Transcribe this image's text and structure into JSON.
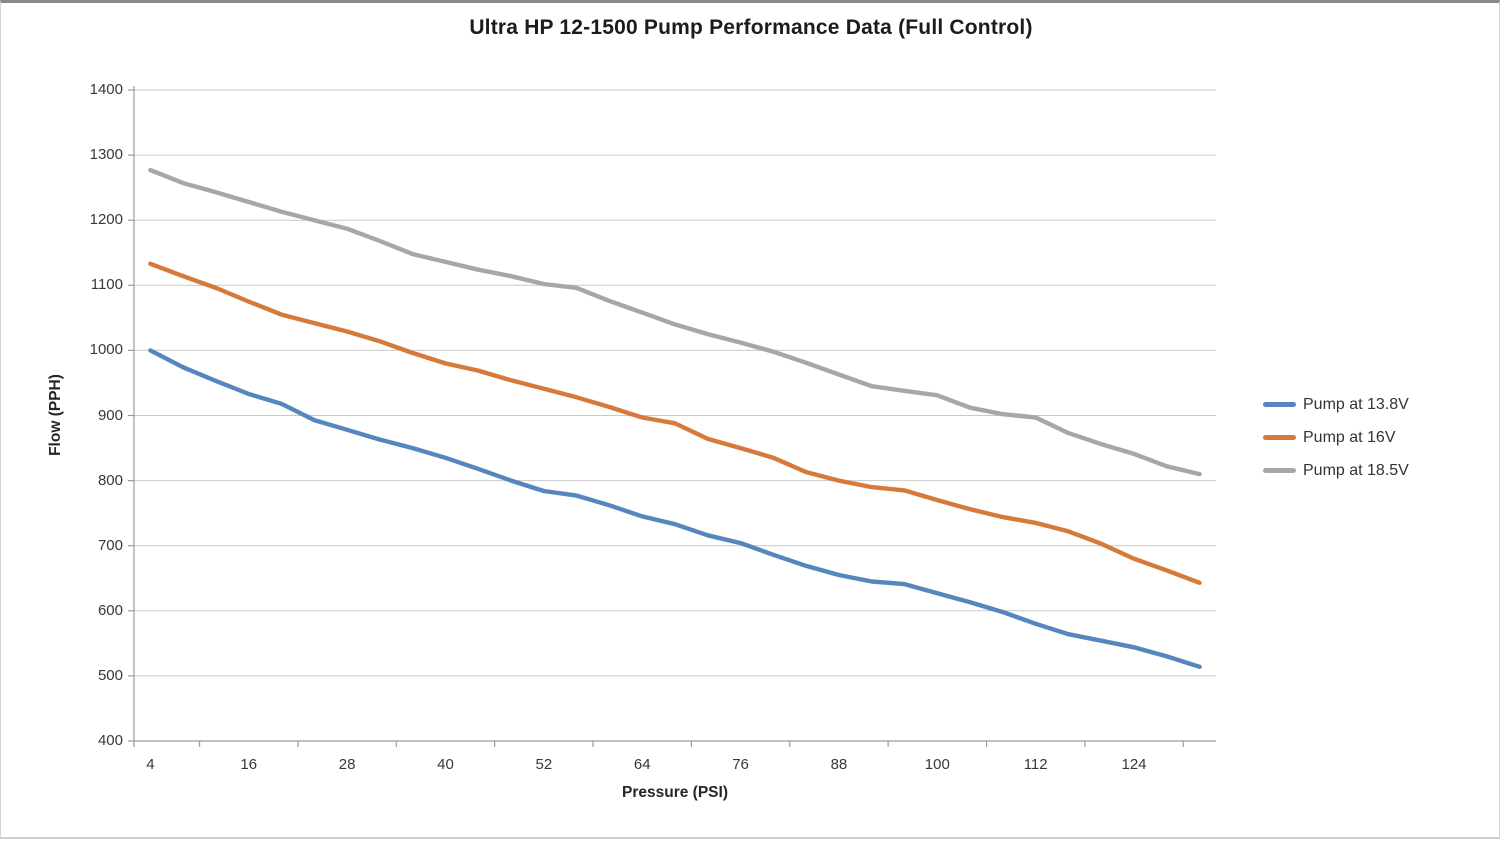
{
  "title": "Ultra HP 12-1500 Pump Performance Data (Full Control)",
  "chart_data": {
    "type": "line",
    "title": "Ultra HP 12-1500 Pump Performance Data (Full Control)",
    "xlabel": "Pressure (PSI)",
    "ylabel": "Flow (PPH)",
    "xlim": [
      4,
      132
    ],
    "ylim": [
      400,
      1400
    ],
    "grid": "horizontal",
    "legend_position": "right",
    "x": [
      4,
      8,
      12,
      16,
      20,
      24,
      28,
      32,
      36,
      40,
      44,
      48,
      52,
      56,
      60,
      64,
      68,
      72,
      76,
      80,
      84,
      88,
      92,
      96,
      100,
      104,
      108,
      112,
      116,
      120,
      124,
      128,
      132
    ],
    "x_tick_labels": [
      4,
      16,
      28,
      40,
      52,
      64,
      76,
      88,
      100,
      112,
      124
    ],
    "y_ticks": [
      400,
      500,
      600,
      700,
      800,
      900,
      1000,
      1100,
      1200,
      1300,
      1400
    ],
    "series": [
      {
        "name": "Pump at 13.8V",
        "color": "#5587BE",
        "values": [
          1000,
          974,
          953,
          933,
          918,
          893,
          878,
          863,
          850,
          835,
          818,
          800,
          784,
          777,
          762,
          745,
          733,
          716,
          704,
          686,
          669,
          655,
          645,
          641,
          627,
          613,
          598,
          580,
          564,
          554,
          544,
          530,
          514
        ]
      },
      {
        "name": "Pump at 16V",
        "color": "#D7793B",
        "values": [
          1133,
          1114,
          1096,
          1075,
          1055,
          1042,
          1029,
          1014,
          996,
          980,
          969,
          954,
          941,
          928,
          913,
          897,
          888,
          864,
          850,
          835,
          813,
          800,
          790,
          785,
          770,
          756,
          744,
          735,
          722,
          703,
          680,
          662,
          643
        ]
      },
      {
        "name": "Pump at 18.5V",
        "color": "#A7A7A7",
        "values": [
          1277,
          1257,
          1243,
          1228,
          1213,
          1200,
          1187,
          1168,
          1148,
          1136,
          1124,
          1114,
          1102,
          1096,
          1076,
          1058,
          1040,
          1025,
          1012,
          998,
          981,
          963,
          945,
          938,
          931,
          912,
          902,
          897,
          873,
          856,
          841,
          822,
          810
        ]
      }
    ],
    "colors": {
      "gridline": "#C9C9C9",
      "axis": "#9B9B9B",
      "tick_text": "#383838",
      "title_text": "#1C1C1C"
    }
  }
}
